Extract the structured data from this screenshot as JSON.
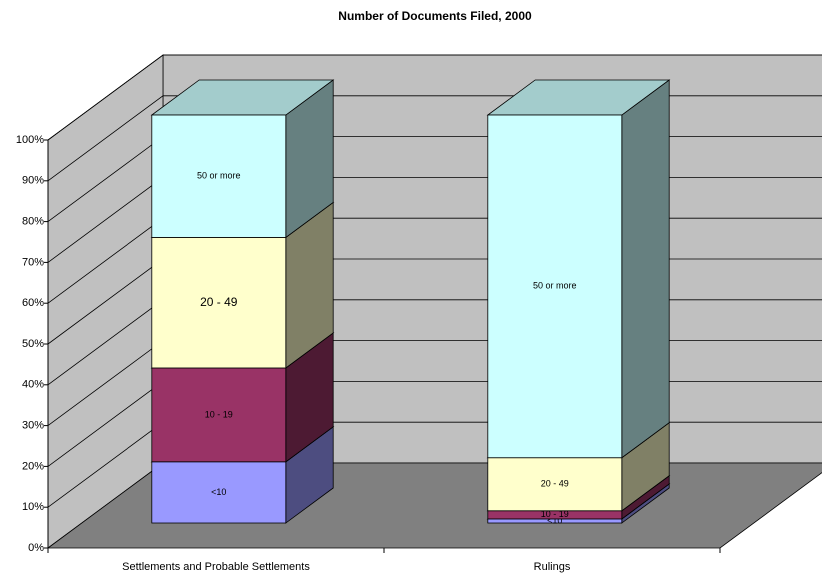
{
  "chart_data": {
    "type": "bar3d_stacked_percent",
    "title": "Number of Documents Filed, 2000",
    "categories": [
      "Settlements and Probable Settlements",
      "Rulings"
    ],
    "series": [
      {
        "name": "<10",
        "color": "#9999ff",
        "values": [
          15,
          1
        ]
      },
      {
        "name": "10 - 19",
        "color": "#993366",
        "values": [
          23,
          2
        ]
      },
      {
        "name": "20 - 49",
        "color": "#ffffcc",
        "values": [
          32,
          13
        ]
      },
      {
        "name": "50 or more",
        "color": "#ccffff",
        "values": [
          30,
          84
        ]
      }
    ],
    "ylim": [
      0,
      100
    ],
    "yticks": [
      {
        "value": 0,
        "label": "0%"
      },
      {
        "value": 10,
        "label": "10%"
      },
      {
        "value": 20,
        "label": "20%"
      },
      {
        "value": 30,
        "label": "30%"
      },
      {
        "value": 40,
        "label": "40%"
      },
      {
        "value": 50,
        "label": "50%"
      },
      {
        "value": 60,
        "label": "60%"
      },
      {
        "value": 70,
        "label": "70%"
      },
      {
        "value": 80,
        "label": "80%"
      },
      {
        "value": 90,
        "label": "90%"
      },
      {
        "value": 100,
        "label": "100%"
      }
    ],
    "grid": true
  }
}
